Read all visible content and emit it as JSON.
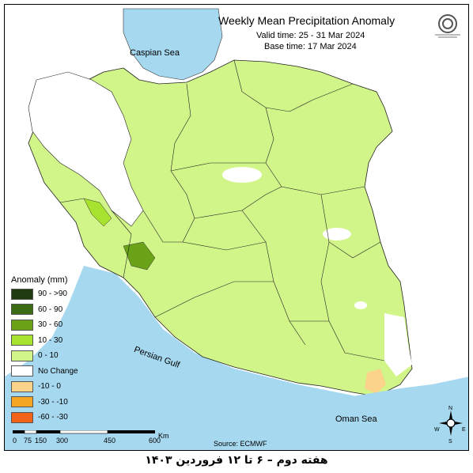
{
  "header": {
    "title": "Weekly Mean Precipitation Anomaly",
    "valid_time": "Valid time: 25 - 31 Mar 2024",
    "base_time": "Base time: 17 Mar 2024"
  },
  "labels": {
    "caspian": "Caspian Sea",
    "persian_gulf": "Persian Gulf",
    "oman_sea": "Oman Sea"
  },
  "legend": {
    "title": "Anomaly (mm)",
    "items": [
      {
        "label": "90 - >90",
        "color": "#1f3a0f"
      },
      {
        "label": "60 - 90",
        "color": "#3b6b12"
      },
      {
        "label": "30 - 60",
        "color": "#6aa317"
      },
      {
        "label": "10 - 30",
        "color": "#a6e22e"
      },
      {
        "label": "0 - 10",
        "color": "#d2f58a"
      },
      {
        "label": "No Change",
        "color": "#ffffff"
      },
      {
        "label": "-10 - 0",
        "color": "#fbd38a"
      },
      {
        "label": "-30 - -10",
        "color": "#f5a623"
      },
      {
        "label": "-60 - -30",
        "color": "#f26419"
      }
    ]
  },
  "scale": {
    "ticks": [
      "0",
      "75",
      "150",
      "300",
      "450",
      "600"
    ],
    "unit": "Km"
  },
  "source": "Source: ECMWF",
  "compass": {
    "n": "N",
    "s": "S",
    "e": "E",
    "w": "W"
  },
  "footer": "هفته دوم – ۶ تا ۱۲ فروردین ۱۴۰۳",
  "colors": {
    "water": "#a6d8f0",
    "land_default": "#ffffff",
    "anomaly_low": "#d2f58a",
    "anomaly_mid": "#a6e22e",
    "anomaly_high": "#6aa317",
    "dry": "#fbd38a"
  }
}
